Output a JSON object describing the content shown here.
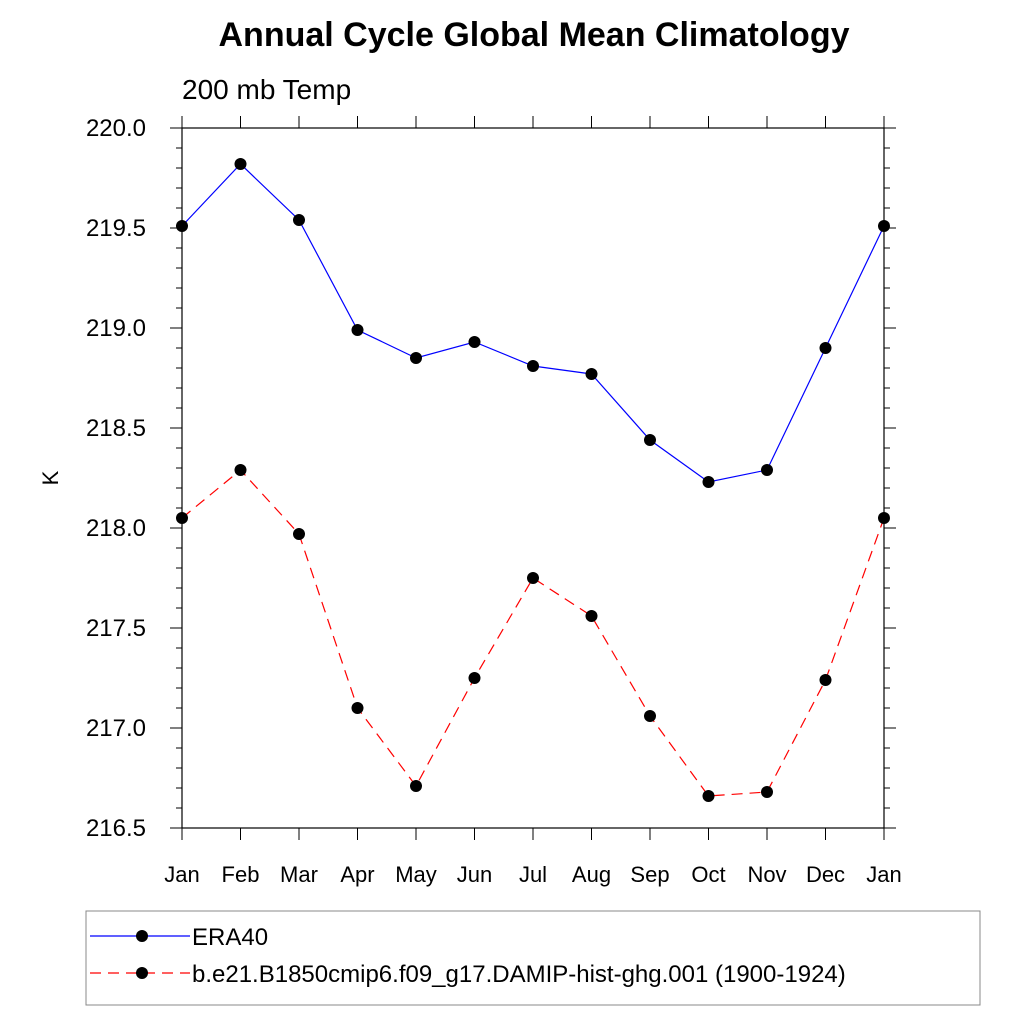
{
  "chart_data": {
    "type": "line",
    "title": "Annual Cycle Global Mean Climatology",
    "subtitle": "200 mb Temp",
    "xlabel": "",
    "ylabel": "K",
    "categories": [
      "Jan",
      "Feb",
      "Mar",
      "Apr",
      "May",
      "Jun",
      "Jul",
      "Aug",
      "Sep",
      "Oct",
      "Nov",
      "Dec",
      "Jan"
    ],
    "ylim": [
      216.5,
      220.0
    ],
    "yticks": [
      "216.5",
      "217.0",
      "217.5",
      "218.0",
      "218.5",
      "219.0",
      "219.5",
      "220.0"
    ],
    "series": [
      {
        "name": "ERA40",
        "color": "#0000ff",
        "dash": "solid",
        "values": [
          219.51,
          219.82,
          219.54,
          218.99,
          218.85,
          218.93,
          218.81,
          218.77,
          218.44,
          218.23,
          218.29,
          218.9,
          219.51
        ]
      },
      {
        "name": "b.e21.B1850cmip6.f09_g17.DAMIP-hist-ghg.001 (1900-1924)",
        "color": "#ff0000",
        "dash": "dashed",
        "values": [
          218.05,
          218.29,
          217.97,
          217.1,
          216.71,
          217.25,
          217.75,
          217.56,
          217.06,
          216.66,
          216.68,
          217.24,
          218.05
        ]
      }
    ],
    "legend_position": "bottom"
  }
}
